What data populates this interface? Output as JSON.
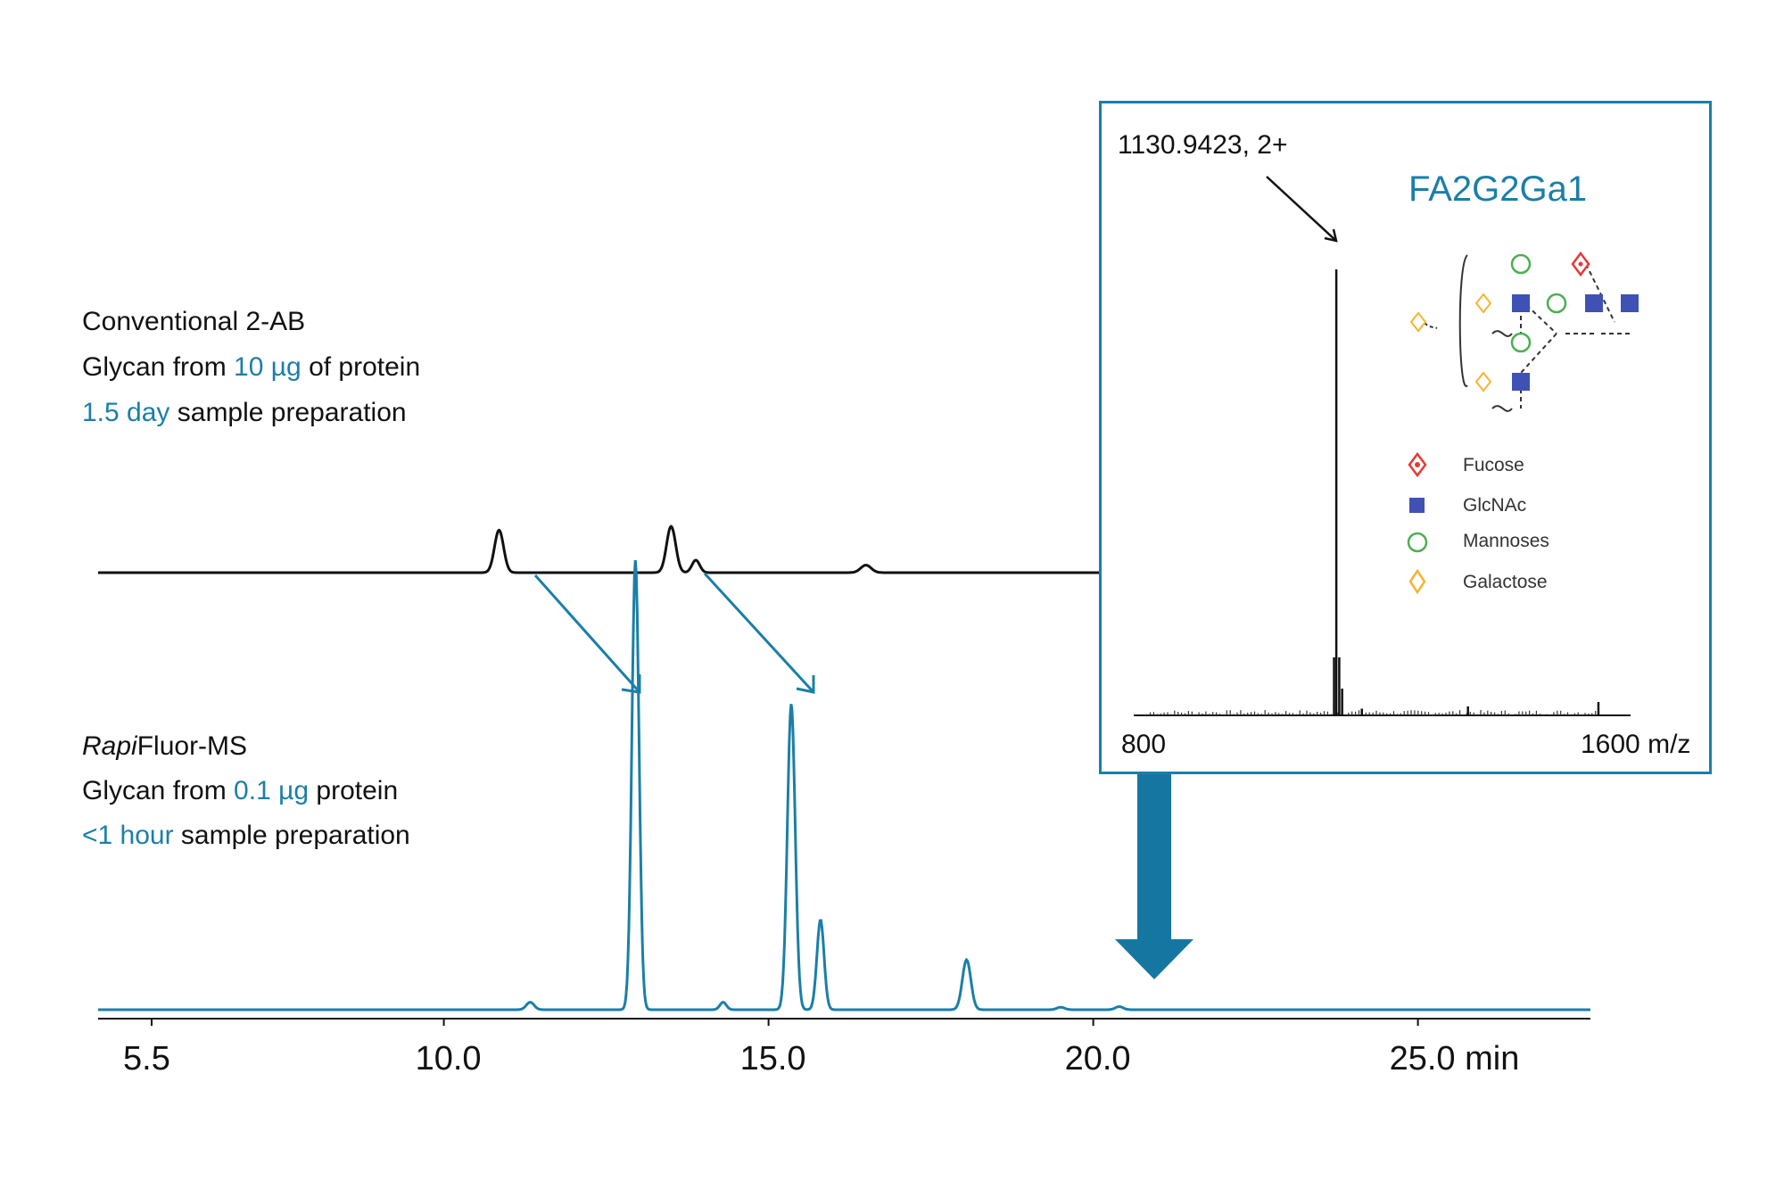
{
  "conventional": {
    "title": "Conventional 2-AB",
    "glycan_prefix": "Glycan from ",
    "glycan_amount": "10 µg",
    "glycan_suffix": " of protein",
    "prep_time": "1.5 day",
    "prep_suffix": " sample preparation"
  },
  "rapifluor": {
    "title_italic": "Rapi",
    "title_rest": "Fluor-MS",
    "glycan_prefix": "Glycan from ",
    "glycan_amount": "0.1 µg",
    "glycan_suffix": " protein",
    "prep_time": "<1 hour",
    "prep_suffix": " sample preparation"
  },
  "ms_inset": {
    "peak_label": "1130.9423, 2+",
    "structure_name": "FA2G2Ga1",
    "x_min_label": "800",
    "x_max_label": "1600 m/z",
    "legend": [
      {
        "name": "Fucose",
        "icon": "red-diamond-icon",
        "color": "#e53935"
      },
      {
        "name": "GlcNAc",
        "icon": "blue-square-icon",
        "color": "#3f51b5"
      },
      {
        "name": "Mannoses",
        "icon": "green-circle-icon",
        "color": "#4caf50"
      },
      {
        "name": "Galactose",
        "icon": "yellow-diamond-icon",
        "color": "#f5b52e"
      }
    ],
    "peaks": [
      {
        "mz": 1130.94,
        "rel": 1.0
      },
      {
        "mz": 1127,
        "rel": 0.13
      },
      {
        "mz": 1136,
        "rel": 0.13
      },
      {
        "mz": 1141,
        "rel": 0.06
      },
      {
        "mz": 1175,
        "rel": 0.015
      },
      {
        "mz": 1358,
        "rel": 0.02
      },
      {
        "mz": 1583,
        "rel": 0.03
      }
    ]
  },
  "colors": {
    "accent": "#1a7fa8",
    "trace_black": "#111111",
    "trace_teal": "#1a7fa8"
  },
  "chart_data": {
    "type": "line",
    "xlabel": "min",
    "xlim": [
      5.0,
      27.8
    ],
    "x_ticks": [
      5.5,
      10.0,
      15.0,
      20.0,
      25.0
    ],
    "x_tick_labels": [
      "5.5",
      "10.0",
      "15.0",
      "20.0",
      "25.0 min"
    ],
    "series": [
      {
        "name": "Conventional 2-AB",
        "color": "#111111",
        "peaks": [
          {
            "rt": 10.85,
            "height": 0.34,
            "width": 0.07
          },
          {
            "rt": 13.5,
            "height": 0.37,
            "width": 0.07
          },
          {
            "rt": 13.88,
            "height": 0.1,
            "width": 0.06
          },
          {
            "rt": 16.5,
            "height": 0.06,
            "width": 0.08
          }
        ]
      },
      {
        "name": "RapiFluor-MS",
        "color": "#1a7fa8",
        "peaks": [
          {
            "rt": 11.33,
            "height": 0.06,
            "width": 0.06
          },
          {
            "rt": 12.95,
            "height": 3.6,
            "width": 0.055
          },
          {
            "rt": 14.3,
            "height": 0.06,
            "width": 0.05
          },
          {
            "rt": 15.35,
            "height": 2.45,
            "width": 0.06
          },
          {
            "rt": 15.8,
            "height": 0.72,
            "width": 0.055
          },
          {
            "rt": 18.05,
            "height": 0.4,
            "width": 0.065
          },
          {
            "rt": 19.5,
            "height": 0.02,
            "width": 0.06
          },
          {
            "rt": 20.4,
            "height": 0.025,
            "width": 0.06
          }
        ]
      }
    ]
  }
}
